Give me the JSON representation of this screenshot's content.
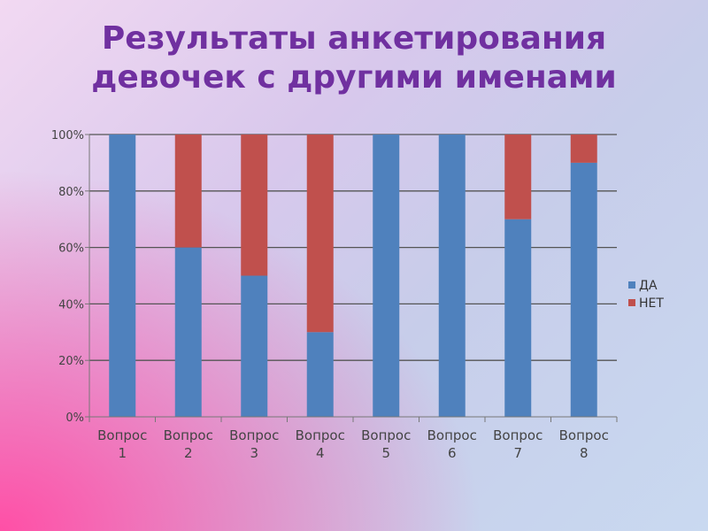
{
  "slide": {
    "title_line1": "Результаты анкетирования",
    "title_line2": "девочек с другими именами"
  },
  "chart_data": {
    "type": "bar",
    "stacked": true,
    "categories": [
      [
        "Вопрос",
        "1"
      ],
      [
        "Вопрос",
        "2"
      ],
      [
        "Вопрос",
        "3"
      ],
      [
        "Вопрос",
        "4"
      ],
      [
        "Вопрос",
        "5"
      ],
      [
        "Вопрос",
        "6"
      ],
      [
        "Вопрос",
        "7"
      ],
      [
        "Вопрос",
        "8"
      ]
    ],
    "series": [
      {
        "name": "ДА",
        "color": "#4f81bd",
        "values": [
          100,
          60,
          50,
          30,
          100,
          100,
          70,
          90
        ]
      },
      {
        "name": "НЕТ",
        "color": "#c0504d",
        "values": [
          0,
          40,
          50,
          70,
          0,
          0,
          30,
          10
        ]
      }
    ],
    "y_ticks": [
      "0%",
      "20%",
      "40%",
      "60%",
      "80%",
      "100%"
    ],
    "ylim": [
      0,
      100
    ],
    "grid": true,
    "legend_position": "right"
  }
}
